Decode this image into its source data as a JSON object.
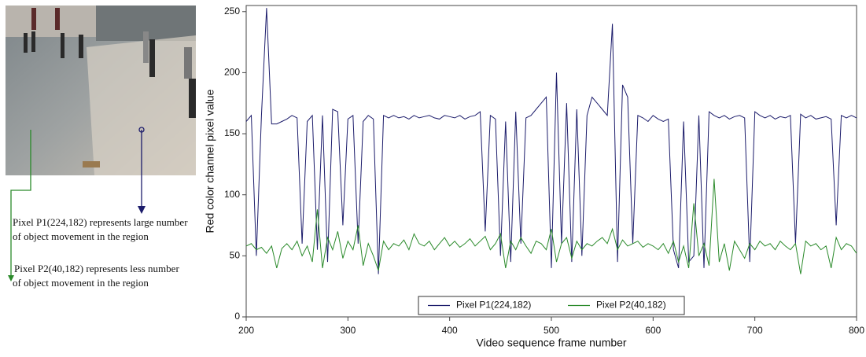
{
  "chart_data": {
    "type": "line",
    "x_label": "Video sequence frame number",
    "y_label": "Red color channel pixel value",
    "annotations": [
      [
        "Pixel P1(224,182) represents large number",
        "of object movement in the region"
      ],
      [
        "Pixel P2(40,182) represents  less number",
        "of object movement in the region"
      ]
    ],
    "xlim": [
      200,
      800
    ],
    "xticks": [
      200,
      300,
      400,
      500,
      600,
      700,
      800
    ],
    "ylim": [
      0,
      255
    ],
    "yticks": [
      0,
      50,
      100,
      150,
      200,
      250
    ],
    "legend": "lower center",
    "x": [
      200,
      205,
      210,
      215,
      220,
      225,
      230,
      235,
      240,
      245,
      250,
      255,
      260,
      265,
      270,
      275,
      280,
      285,
      290,
      295,
      300,
      305,
      310,
      315,
      320,
      325,
      330,
      335,
      340,
      345,
      350,
      355,
      360,
      365,
      370,
      375,
      380,
      385,
      390,
      395,
      400,
      405,
      410,
      415,
      420,
      425,
      430,
      435,
      440,
      445,
      450,
      455,
      460,
      465,
      470,
      475,
      480,
      485,
      490,
      495,
      500,
      505,
      510,
      515,
      520,
      525,
      530,
      535,
      540,
      545,
      550,
      555,
      560,
      565,
      570,
      575,
      580,
      585,
      590,
      595,
      600,
      605,
      610,
      615,
      620,
      625,
      630,
      635,
      640,
      645,
      650,
      655,
      660,
      665,
      670,
      675,
      680,
      685,
      690,
      695,
      700,
      705,
      710,
      715,
      720,
      725,
      730,
      735,
      740,
      745,
      750,
      755,
      760,
      765,
      770,
      775,
      780,
      785,
      790,
      795,
      800
    ],
    "series": [
      {
        "name": "Pixel P1(224,182)",
        "color": "#1c1c6b",
        "values": [
          160,
          165,
          50,
          165,
          253,
          158,
          158,
          160,
          162,
          165,
          163,
          60,
          160,
          165,
          55,
          165,
          45,
          170,
          168,
          75,
          162,
          165,
          60,
          160,
          165,
          162,
          35,
          165,
          163,
          165,
          163,
          164,
          162,
          165,
          163,
          164,
          165,
          163,
          162,
          165,
          164,
          163,
          165,
          162,
          164,
          165,
          168,
          70,
          165,
          162,
          50,
          160,
          45,
          168,
          60,
          163,
          165,
          170,
          175,
          180,
          40,
          200,
          60,
          175,
          45,
          170,
          50,
          165,
          180,
          175,
          170,
          165,
          240,
          45,
          190,
          180,
          60,
          165,
          163,
          160,
          165,
          162,
          160,
          162,
          55,
          40,
          160,
          45,
          50,
          165,
          40,
          168,
          165,
          163,
          165,
          162,
          164,
          165,
          163,
          45,
          168,
          165,
          163,
          165,
          162,
          164,
          163,
          165,
          60,
          166,
          163,
          165,
          162,
          163,
          164,
          162,
          75,
          165,
          163,
          165,
          163
        ]
      },
      {
        "name": "Pixel P2(40,182)",
        "color": "#2a8a2a",
        "values": [
          58,
          60,
          55,
          57,
          52,
          58,
          40,
          56,
          60,
          55,
          62,
          50,
          58,
          45,
          88,
          40,
          65,
          55,
          70,
          48,
          62,
          55,
          75,
          42,
          60,
          50,
          38,
          62,
          55,
          60,
          58,
          63,
          55,
          68,
          60,
          58,
          62,
          55,
          60,
          65,
          58,
          62,
          57,
          60,
          64,
          58,
          62,
          66,
          55,
          60,
          68,
          40,
          62,
          55,
          65,
          58,
          52,
          62,
          60,
          55,
          72,
          45,
          60,
          65,
          48,
          62,
          55,
          60,
          58,
          62,
          65,
          60,
          72,
          55,
          63,
          58,
          60,
          62,
          57,
          60,
          58,
          55,
          60,
          52,
          62,
          45,
          58,
          40,
          93,
          50,
          60,
          42,
          113,
          45,
          60,
          38,
          62,
          55,
          48,
          60,
          55,
          62,
          58,
          60,
          55,
          62,
          58,
          55,
          60,
          35,
          62,
          58,
          60,
          55,
          58,
          40,
          65,
          55,
          60,
          58,
          52
        ]
      }
    ]
  }
}
